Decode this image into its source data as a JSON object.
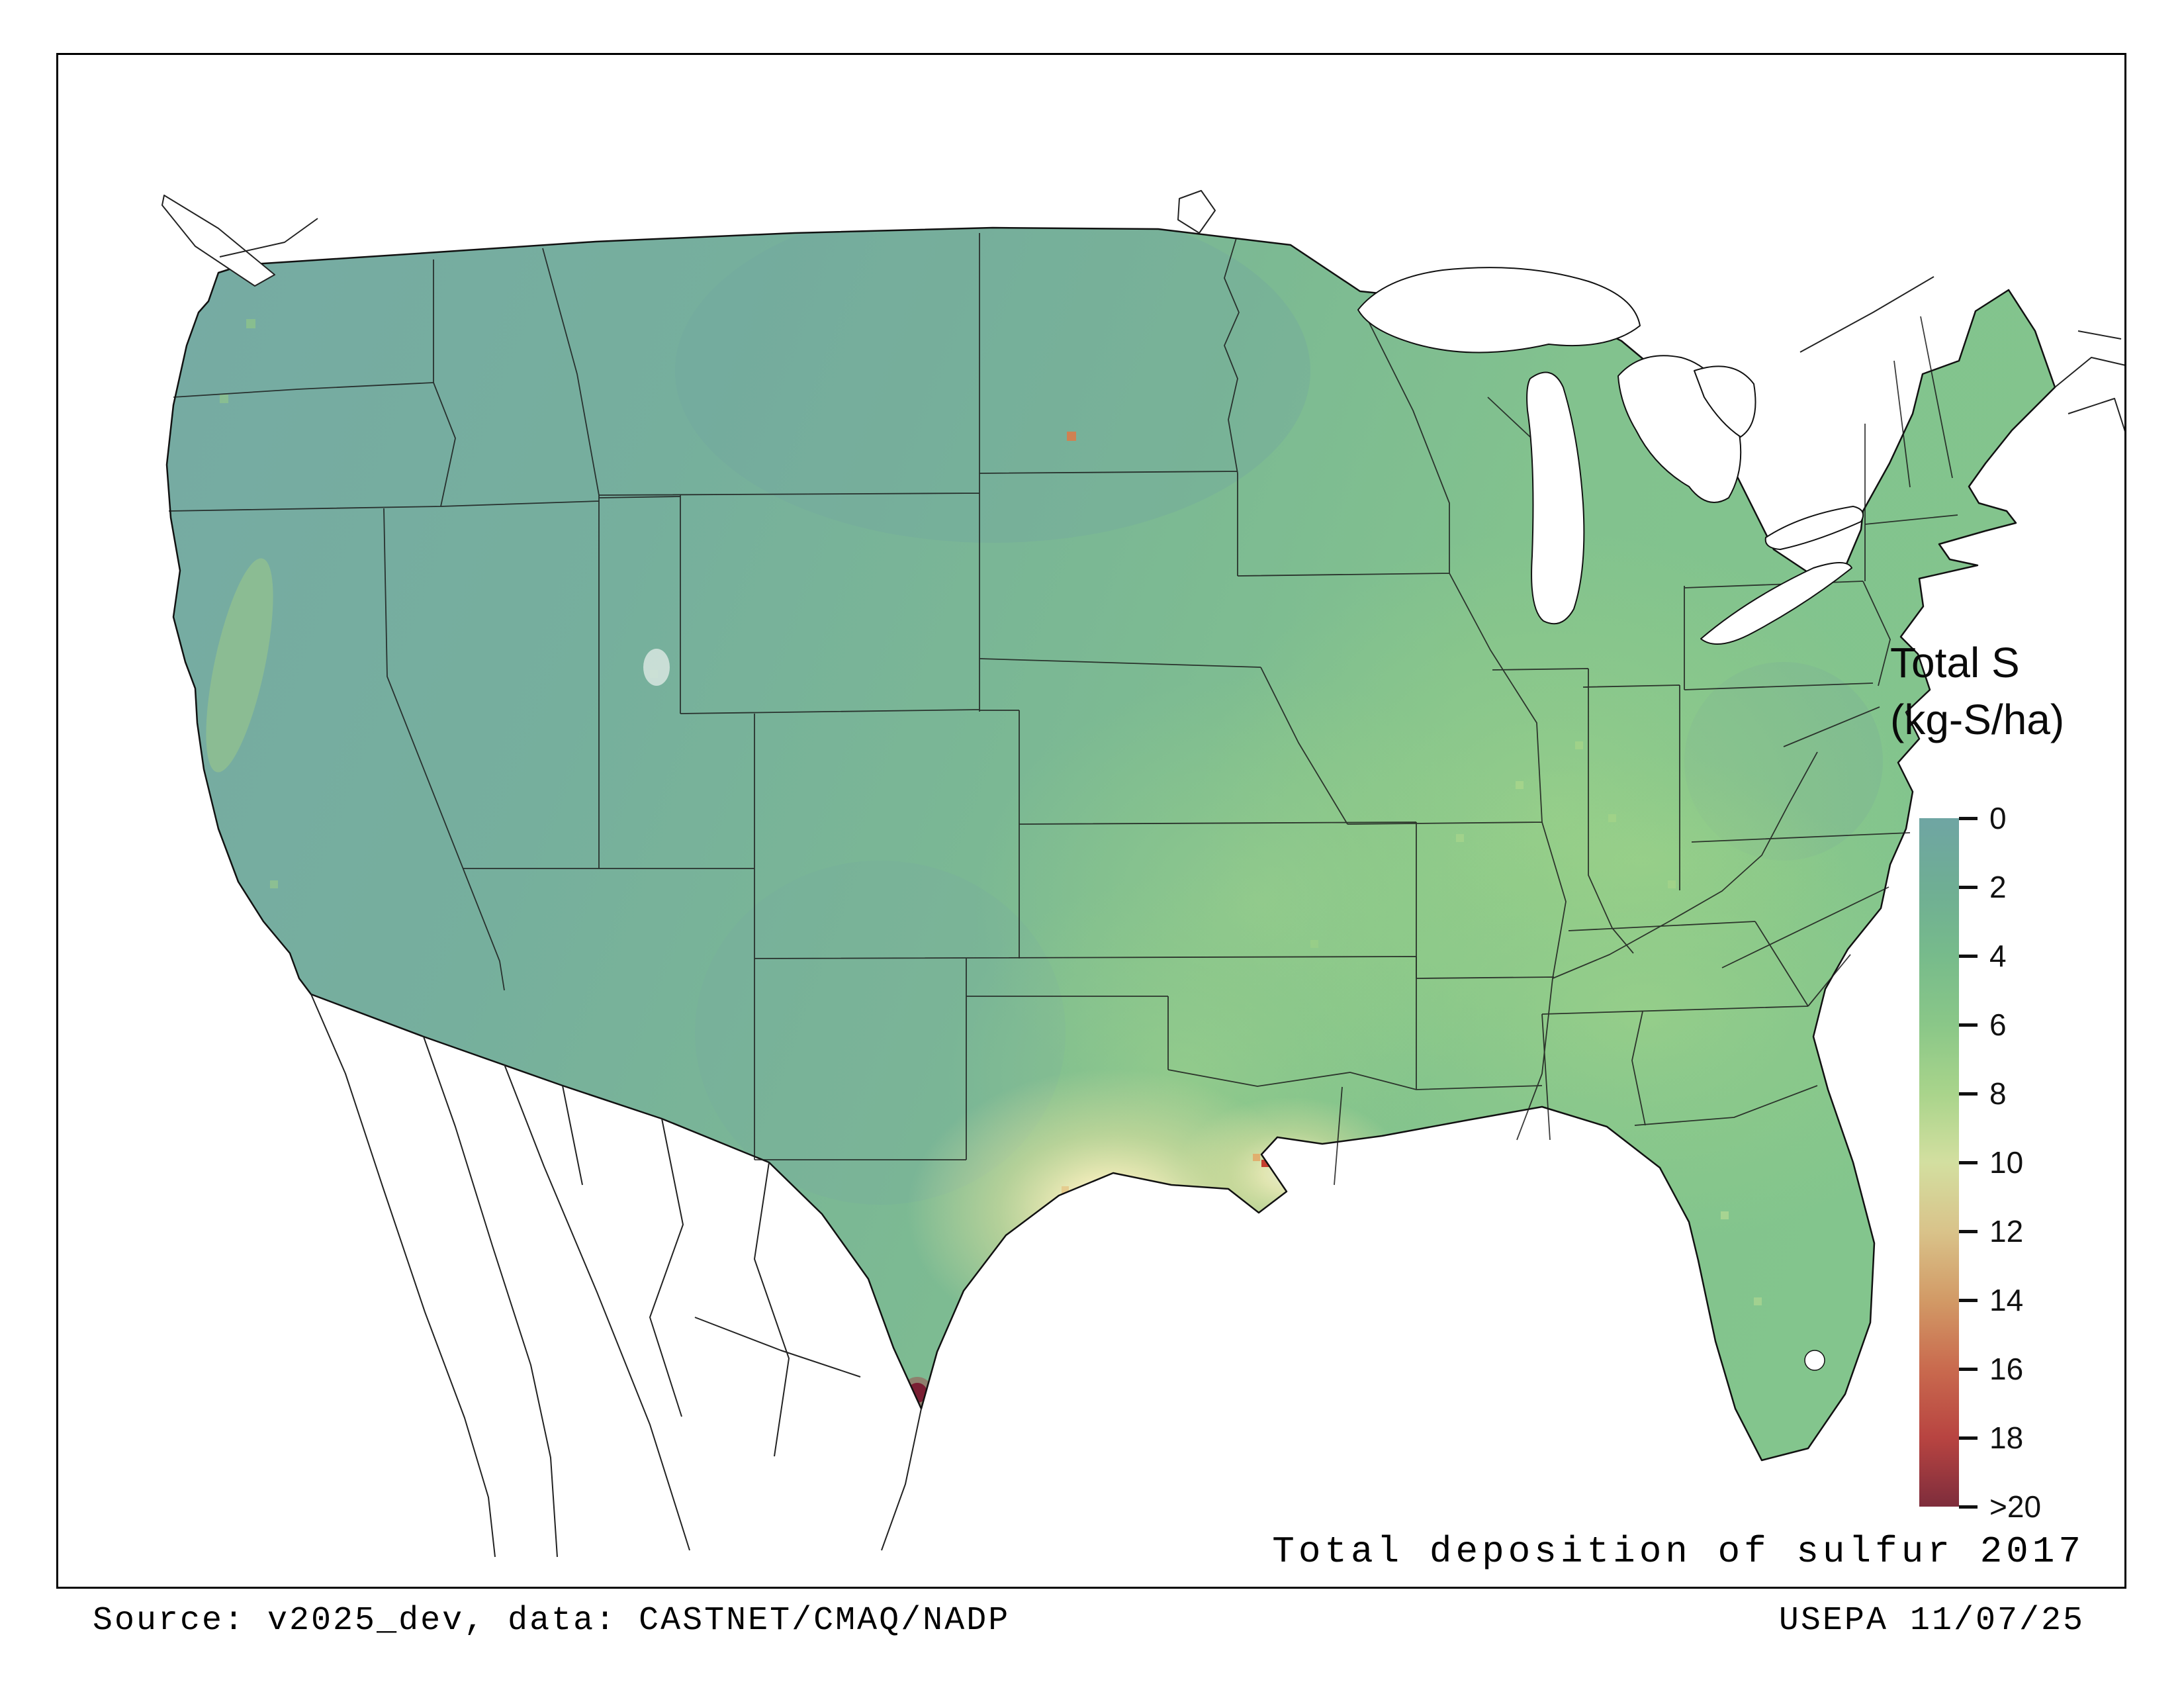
{
  "figure": {
    "title": "Total deposition of sulfur 2017",
    "source": "Source: v2025_dev, data: CASTNET/CMAQ/NADP",
    "credit": "USEPA 11/07/25"
  },
  "legend": {
    "title_line1": "Total S",
    "title_line2": "(kg-S/ha)",
    "ticks": [
      "0",
      "2",
      "4",
      "6",
      "8",
      "10",
      "12",
      "14",
      "16",
      "18",
      ">20"
    ],
    "tick_values": [
      0,
      2,
      4,
      6,
      8,
      10,
      12,
      14,
      16,
      18,
      20
    ],
    "colors": [
      "#6FA5A3",
      "#6FAE94",
      "#77BB8B",
      "#8AC788",
      "#A9D48B",
      "#D3DFA0",
      "#D9C38A",
      "#D29A66",
      "#C96A4E",
      "#B84441",
      "#7E2D3C"
    ]
  },
  "map": {
    "name": "Contiguous United States gridded total sulfur deposition, 2017",
    "units": "kg-S/ha",
    "base_low_color": "#76AAA4",
    "base_high_color": "#83C58D",
    "hotspot_core_color": "#F8F6DC",
    "max_color": "#7A1F33"
  },
  "chart_data": {
    "type": "heatmap",
    "title": "Total deposition of sulfur 2017",
    "legend_title": "Total S (kg-S/ha)",
    "scale_ticks": [
      0,
      2,
      4,
      6,
      8,
      10,
      12,
      14,
      16,
      18,
      20
    ],
    "scale_tick_labels": [
      "0",
      "2",
      "4",
      "6",
      "8",
      "10",
      "12",
      "14",
      "16",
      "18",
      ">20"
    ],
    "scale_colors": [
      "#6FA5A3",
      "#6FAE94",
      "#77BB8B",
      "#8AC788",
      "#A9D48B",
      "#D3DFA0",
      "#D9C38A",
      "#D29A66",
      "#C96A4E",
      "#B84441",
      "#7E2D3C"
    ],
    "notes": "Most of CONUS 0-8 kg-S/ha; teal (low) in the West, green in the Midwest/Southeast, pale-yellow/orange hotspots on the Texas-Louisiana Gulf Coast, dark-red maximum at the southern tip of Texas"
  }
}
